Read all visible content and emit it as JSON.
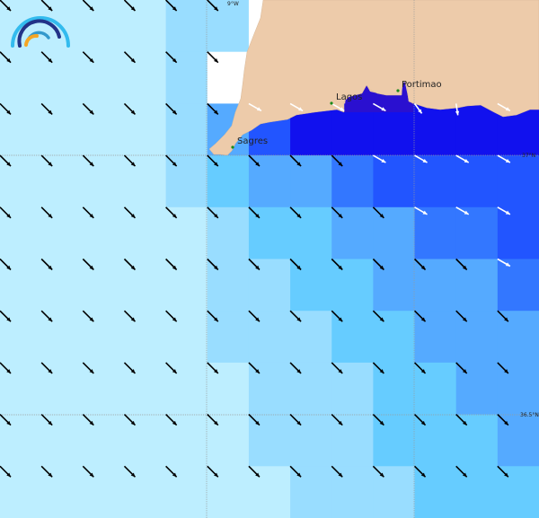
{
  "map": {
    "palette": [
      "#bdeeff",
      "#99ddff",
      "#66ccff",
      "#55aaff",
      "#3377ff",
      "#2255ff",
      "#1111ee"
    ],
    "land_color": "#edcbaa",
    "nodata_color": "#ffffff",
    "coastal_shallow_color": "#2a10d0",
    "grid_levels": [
      [
        0,
        0,
        0,
        0,
        1,
        1,
        -2,
        -1,
        -1,
        -1,
        -1,
        -1,
        -1
      ],
      [
        0,
        0,
        0,
        0,
        1,
        -2,
        -1,
        -1,
        -1,
        -1,
        -1,
        -1,
        -1
      ],
      [
        0,
        0,
        0,
        0,
        1,
        3,
        5,
        6,
        6,
        6,
        6,
        6,
        6
      ],
      [
        0,
        0,
        0,
        0,
        1,
        2,
        3,
        3,
        4,
        5,
        5,
        5,
        5
      ],
      [
        0,
        0,
        0,
        0,
        0,
        1,
        2,
        2,
        3,
        3,
        4,
        4,
        5
      ],
      [
        0,
        0,
        0,
        0,
        0,
        1,
        1,
        2,
        2,
        3,
        3,
        3,
        4
      ],
      [
        0,
        0,
        0,
        0,
        0,
        1,
        1,
        1,
        2,
        2,
        3,
        3,
        3
      ],
      [
        0,
        0,
        0,
        0,
        0,
        0,
        1,
        1,
        1,
        2,
        2,
        3,
        3
      ],
      [
        0,
        0,
        0,
        0,
        0,
        0,
        1,
        1,
        1,
        2,
        2,
        2,
        3
      ],
      [
        0,
        0,
        0,
        0,
        0,
        0,
        0,
        1,
        1,
        1,
        2,
        2,
        2
      ]
    ],
    "arrow_direction": "southeast",
    "cities": [
      {
        "name": "Sagres"
      },
      {
        "name": "Lagos"
      },
      {
        "name": "Portimao"
      }
    ],
    "city_dot_color": "#1a8a1a",
    "graticule": {
      "lon_label": "9°W",
      "lat_labels": [
        "37°N",
        "36.5°N"
      ]
    },
    "logo": "wave-logo"
  }
}
